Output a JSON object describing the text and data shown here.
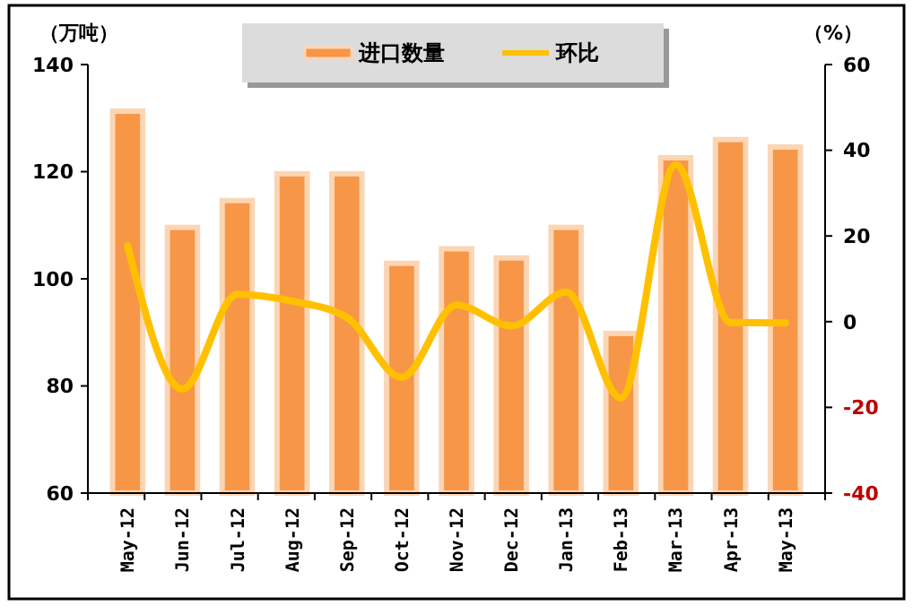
{
  "chart_data": {
    "type": "bar",
    "ylabel": "（万吨）",
    "y2label": "（%）",
    "categories": [
      "May-12",
      "Jun-12",
      "Jul-12",
      "Aug-12",
      "Sep-12",
      "Oct-12",
      "Nov-12",
      "Dec-12",
      "Jan-13",
      "Feb-13",
      "Mar-13",
      "Apr-13",
      "May-13"
    ],
    "series": [
      {
        "name": "进口数量",
        "color": "#f79646",
        "values": [
          131.3,
          109.6,
          114.6,
          119.6,
          119.6,
          102.9,
          105.6,
          103.9,
          109.6,
          89.8,
          122.6,
          126,
          124.6
        ]
      },
      {
        "name": "环比",
        "type": "line",
        "axis": "y2",
        "color": "#ffc000",
        "values": [
          17.7,
          -15.7,
          6.4,
          4.8,
          1,
          -13,
          3.9,
          -1,
          6.9,
          -17.8,
          36.6,
          -0.2,
          -0.3
        ]
      }
    ],
    "ylim": [
      60,
      140
    ],
    "yticks": [
      60,
      80,
      100,
      120,
      140
    ],
    "y2lim": [
      -40,
      60
    ],
    "y2ticks": [
      -40,
      -20,
      0,
      20,
      40,
      60
    ],
    "legend": "top",
    "grid": false,
    "marker": "none",
    "line_style": "solid"
  }
}
